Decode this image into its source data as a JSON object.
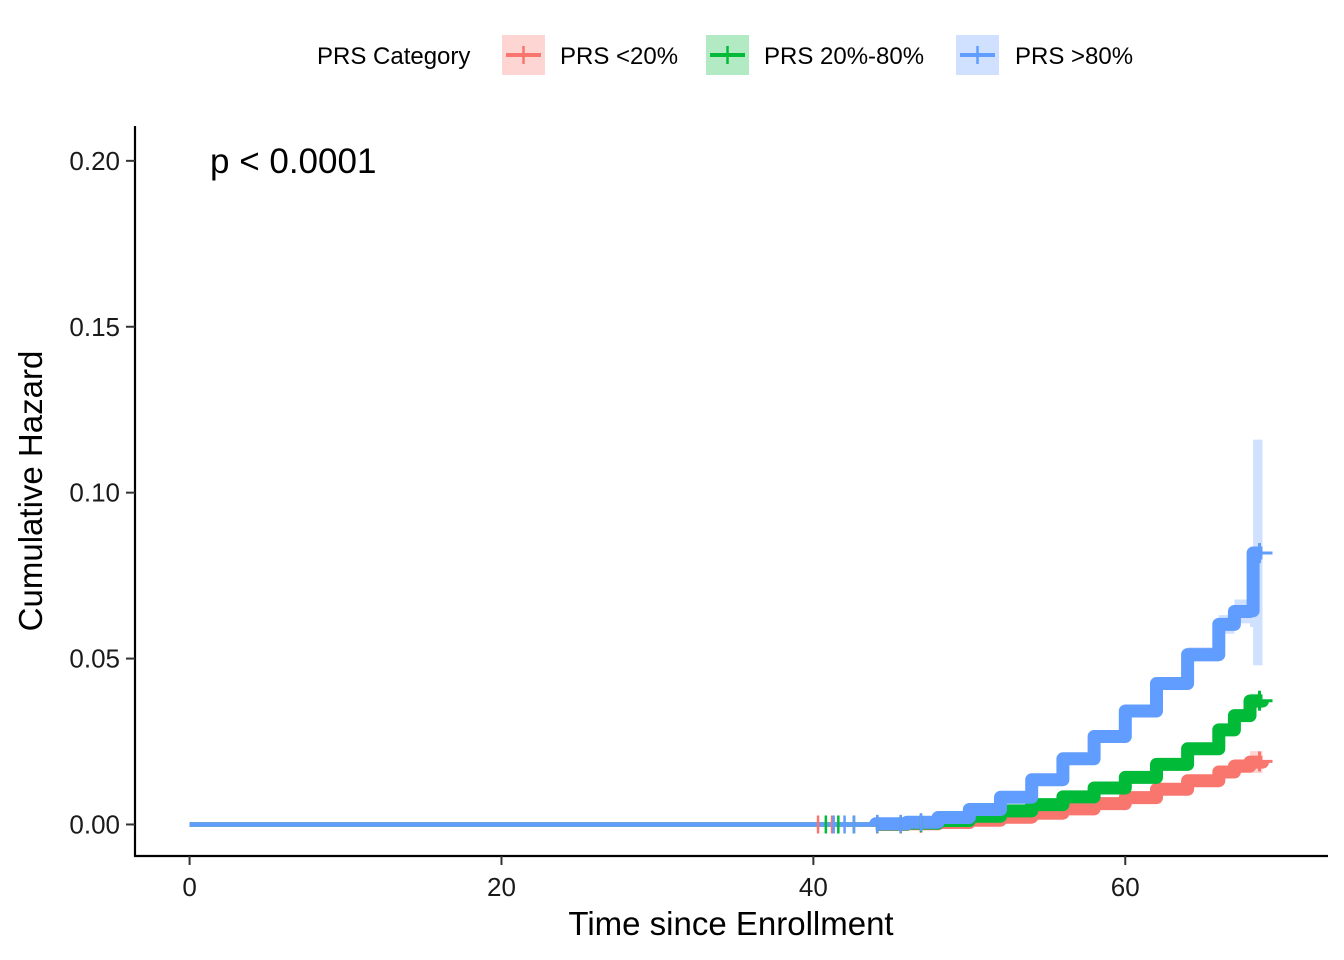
{
  "chart_data": {
    "type": "line",
    "title": "",
    "xlabel": "Time since Enrollment",
    "ylabel": "Cumulative Hazard",
    "xlim": [
      -3.5,
      73
    ],
    "ylim": [
      -0.0095,
      0.2105
    ],
    "x_ticks": [
      0,
      20,
      40,
      60
    ],
    "y_ticks": [
      0.0,
      0.05,
      0.1,
      0.15,
      0.2
    ],
    "x_tick_labels": [
      "0",
      "20",
      "40",
      "60"
    ],
    "y_tick_labels": [
      "0.00",
      "0.05",
      "0.10",
      "0.15",
      "0.20"
    ],
    "grid": false,
    "legend_title": "PRS Category",
    "legend_position": "top",
    "annotation": "p < 0.0001",
    "series": [
      {
        "name": "PRS <20%",
        "color": "#F8766D",
        "x": [
          0,
          40,
          44,
          46,
          48,
          50,
          52,
          54,
          56,
          58,
          60,
          62,
          64,
          66,
          67,
          68,
          68.8
        ],
        "y": [
          0,
          0,
          0,
          0.0002,
          0.0006,
          0.0013,
          0.0022,
          0.0034,
          0.0047,
          0.0063,
          0.0081,
          0.0106,
          0.0132,
          0.0158,
          0.0176,
          0.0188,
          0.019
        ],
        "ci_low": [
          0,
          0,
          0,
          0.0001,
          0.0004,
          0.0009,
          0.0017,
          0.0028,
          0.004,
          0.0055,
          0.0072,
          0.0095,
          0.0119,
          0.0143,
          0.0155,
          0.0155,
          0.0155
        ],
        "ci_high": [
          0,
          0,
          0,
          0.0003,
          0.0008,
          0.0017,
          0.0027,
          0.004,
          0.0054,
          0.0071,
          0.009,
          0.0117,
          0.0145,
          0.0173,
          0.0197,
          0.0221,
          0.0225
        ]
      },
      {
        "name": "PRS 20%-80%",
        "color": "#00BA38",
        "x": [
          0,
          40,
          44,
          46,
          48,
          50,
          52,
          54,
          56,
          58,
          60,
          62,
          64,
          66,
          67,
          68,
          68.8
        ],
        "y": [
          0,
          0,
          0.0001,
          0.0004,
          0.0012,
          0.0025,
          0.0041,
          0.006,
          0.0083,
          0.011,
          0.0142,
          0.0181,
          0.0228,
          0.0285,
          0.0328,
          0.0372,
          0.0373
        ],
        "ci_low": [
          0,
          0,
          0,
          0.0003,
          0.001,
          0.0022,
          0.0037,
          0.0056,
          0.0078,
          0.0104,
          0.0136,
          0.0174,
          0.022,
          0.0275,
          0.0315,
          0.035,
          0.035
        ],
        "ci_high": [
          0,
          0,
          0.0002,
          0.0005,
          0.0014,
          0.0028,
          0.0045,
          0.0064,
          0.0088,
          0.0116,
          0.0148,
          0.0188,
          0.0236,
          0.0295,
          0.0341,
          0.0394,
          0.0396
        ]
      },
      {
        "name": "PRS >80%",
        "color": "#619CFF",
        "x": [
          0,
          40,
          44,
          46,
          48,
          50,
          52,
          54,
          56,
          58,
          60,
          62,
          64,
          66,
          67,
          68,
          68.2,
          68.8
        ],
        "y": [
          0,
          0,
          0.0002,
          0.0007,
          0.0021,
          0.0045,
          0.0082,
          0.0135,
          0.0198,
          0.0265,
          0.0342,
          0.0425,
          0.0512,
          0.0603,
          0.0642,
          0.0644,
          0.0818,
          0.0818
        ],
        "ci_low": [
          0,
          0,
          0,
          0.0005,
          0.0017,
          0.0039,
          0.0075,
          0.0126,
          0.0187,
          0.0252,
          0.0327,
          0.0407,
          0.049,
          0.0575,
          0.0606,
          0.0595,
          0.048,
          0.048
        ],
        "ci_high": [
          0,
          0,
          0.0004,
          0.0009,
          0.0025,
          0.0051,
          0.0089,
          0.0144,
          0.0209,
          0.0278,
          0.0357,
          0.0443,
          0.0534,
          0.0631,
          0.0678,
          0.0693,
          0.116,
          0.116
        ]
      }
    ]
  }
}
